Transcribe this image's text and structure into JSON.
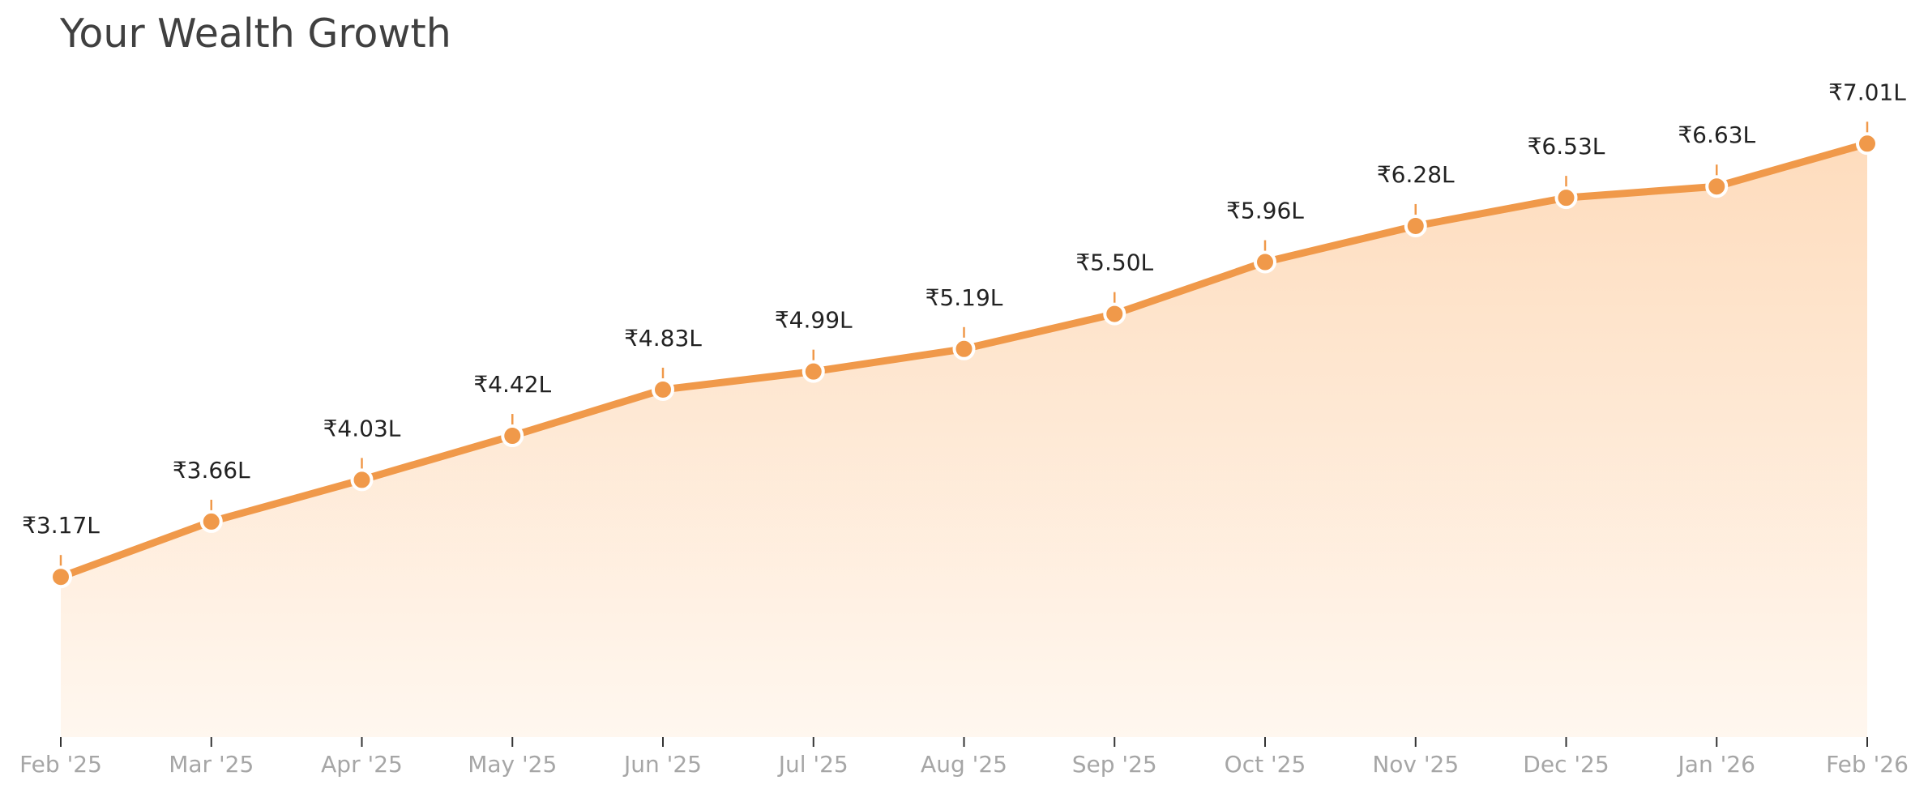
{
  "chart_data": {
    "type": "area",
    "title": "Your Wealth Growth",
    "xlabel": "",
    "ylabel": "",
    "categories": [
      "Feb '25",
      "Mar '25",
      "Apr '25",
      "May '25",
      "Jun '25",
      "Jul '25",
      "Aug '25",
      "Sep '25",
      "Oct '25",
      "Nov '25",
      "Dec '25",
      "Jan '26",
      "Feb '26"
    ],
    "series": [
      {
        "values": [
          3.17,
          3.66,
          4.03,
          4.42,
          4.83,
          4.99,
          5.19,
          5.5,
          5.96,
          6.28,
          6.53,
          6.63,
          7.01
        ],
        "data_labels": [
          "₹3.17L",
          "₹3.66L",
          "₹4.03L",
          "₹4.42L",
          "₹4.83L",
          "₹4.99L",
          "₹5.19L",
          "₹5.50L",
          "₹5.96L",
          "₹6.28L",
          "₹6.53L",
          "₹6.63L",
          "₹7.01L"
        ]
      }
    ],
    "unit": "₹ Lakh",
    "ylim": [
      1.75,
      7.5
    ],
    "grid": false,
    "legend": "none",
    "colors": {
      "line": "#f0994a",
      "fill_top": "#fedcbd",
      "fill_bottom": "#fff7ef",
      "marker_edge": "#ffffff",
      "title": "#404040",
      "value_label": "#222222",
      "tick_label": "#a6a6a6"
    }
  }
}
